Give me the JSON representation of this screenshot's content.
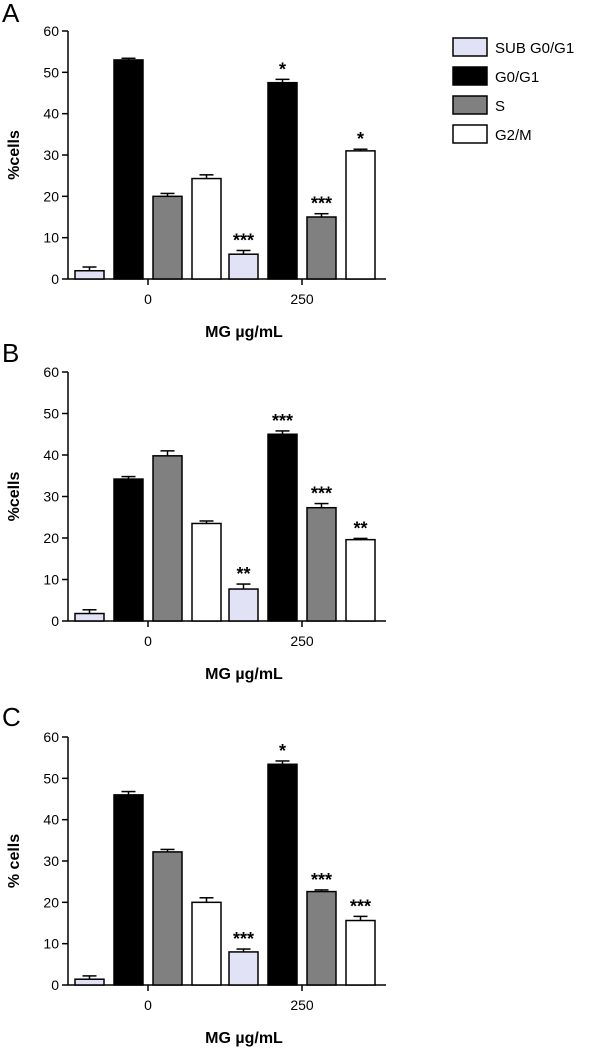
{
  "chart_data": [
    {
      "type": "bar",
      "panel": "A",
      "categories": [
        "0",
        "250"
      ],
      "xlabel": "MG µg/mL",
      "ylabel": "%cells",
      "ylim": [
        0,
        60
      ],
      "yticks": [
        0,
        10,
        20,
        30,
        40,
        50,
        60
      ],
      "series": [
        {
          "name": "SUB G0/G1",
          "values": [
            2,
            6
          ],
          "errors": [
            0.9,
            0.9
          ],
          "sig": [
            "",
            "***"
          ]
        },
        {
          "name": "G0/G1",
          "values": [
            53,
            47.5
          ],
          "errors": [
            0.4,
            0.8
          ],
          "sig": [
            "",
            "*"
          ]
        },
        {
          "name": "S",
          "values": [
            20,
            15
          ],
          "errors": [
            0.7,
            0.8
          ],
          "sig": [
            "",
            "***"
          ]
        },
        {
          "name": "G2/M",
          "values": [
            24.3,
            31
          ],
          "errors": [
            0.9,
            0.4
          ],
          "sig": [
            "",
            "*"
          ]
        }
      ]
    },
    {
      "type": "bar",
      "panel": "B",
      "categories": [
        "0",
        "250"
      ],
      "xlabel": "MG µg/mL",
      "ylabel": "%cells",
      "ylim": [
        0,
        60
      ],
      "yticks": [
        0,
        10,
        20,
        30,
        40,
        50,
        60
      ],
      "series": [
        {
          "name": "SUB G0/G1",
          "values": [
            1.8,
            7.7
          ],
          "errors": [
            0.9,
            1.2
          ],
          "sig": [
            "",
            "**"
          ]
        },
        {
          "name": "G0/G1",
          "values": [
            34.2,
            45
          ],
          "errors": [
            0.6,
            0.8
          ],
          "sig": [
            "",
            "***"
          ]
        },
        {
          "name": "S",
          "values": [
            39.8,
            27.3
          ],
          "errors": [
            1.2,
            1.0
          ],
          "sig": [
            "",
            "***"
          ]
        },
        {
          "name": "G2/M",
          "values": [
            23.5,
            19.6
          ],
          "errors": [
            0.6,
            0.3
          ],
          "sig": [
            "",
            "**"
          ]
        }
      ]
    },
    {
      "type": "bar",
      "panel": "C",
      "categories": [
        "0",
        "250"
      ],
      "xlabel": "MG µg/mL",
      "ylabel": "% cells",
      "ylim": [
        0,
        60
      ],
      "yticks": [
        0,
        10,
        20,
        30,
        40,
        50,
        60
      ],
      "series": [
        {
          "name": "SUB G0/G1",
          "values": [
            1.4,
            8
          ],
          "errors": [
            0.8,
            0.7
          ],
          "sig": [
            "",
            "***"
          ]
        },
        {
          "name": "G0/G1",
          "values": [
            46,
            53.4
          ],
          "errors": [
            0.8,
            0.8
          ],
          "sig": [
            "",
            "*"
          ]
        },
        {
          "name": "S",
          "values": [
            32.2,
            22.6
          ],
          "errors": [
            0.6,
            0.4
          ],
          "sig": [
            "",
            "***"
          ]
        },
        {
          "name": "G2/M",
          "values": [
            20,
            15.6
          ],
          "errors": [
            1.1,
            1.0
          ],
          "sig": [
            "",
            "***"
          ]
        }
      ]
    }
  ],
  "legend": {
    "placement": "top-right",
    "items": [
      {
        "name": "SUB G0/G1",
        "color": "#e2e2f6"
      },
      {
        "name": "G0/G1",
        "color": "#000000"
      },
      {
        "name": "S",
        "color": "#808080"
      },
      {
        "name": "G2/M",
        "color": "#ffffff"
      }
    ]
  },
  "colors": {
    "SUB G0/G1": "#e2e2f6",
    "G0/G1": "#000000",
    "S": "#808080",
    "G2/M": "#ffffff"
  }
}
